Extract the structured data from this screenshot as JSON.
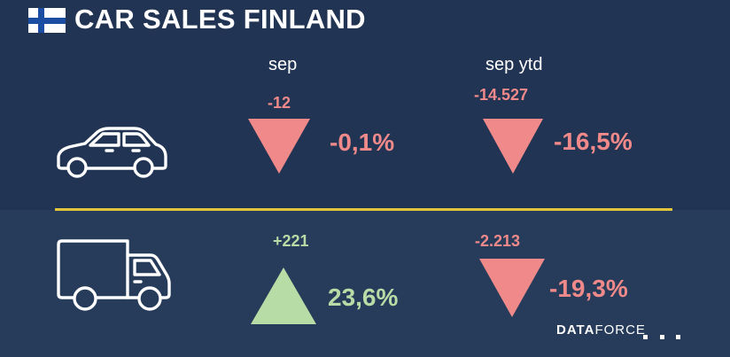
{
  "title": "CAR SALES FINLAND",
  "columns": {
    "month": "sep",
    "ytd": "sep ytd"
  },
  "rows": [
    {
      "vehicle_icon": "car-icon",
      "month": {
        "delta": "-12",
        "pct": "-0,1%",
        "direction": "down"
      },
      "ytd": {
        "delta": "-14.527",
        "pct": "-16,5%",
        "direction": "down"
      }
    },
    {
      "vehicle_icon": "truck-icon",
      "month": {
        "delta": "+221",
        "pct": "23,6%",
        "direction": "up"
      },
      "ytd": {
        "delta": "-2.213",
        "pct": "-19,3%",
        "direction": "down"
      }
    }
  ],
  "logo": {
    "bold": "DATA",
    "light": "FORCE"
  },
  "colors": {
    "background": "#223453",
    "negative": "#f08a8a",
    "positive": "#b8dca6",
    "divider": "#e2c53a"
  }
}
